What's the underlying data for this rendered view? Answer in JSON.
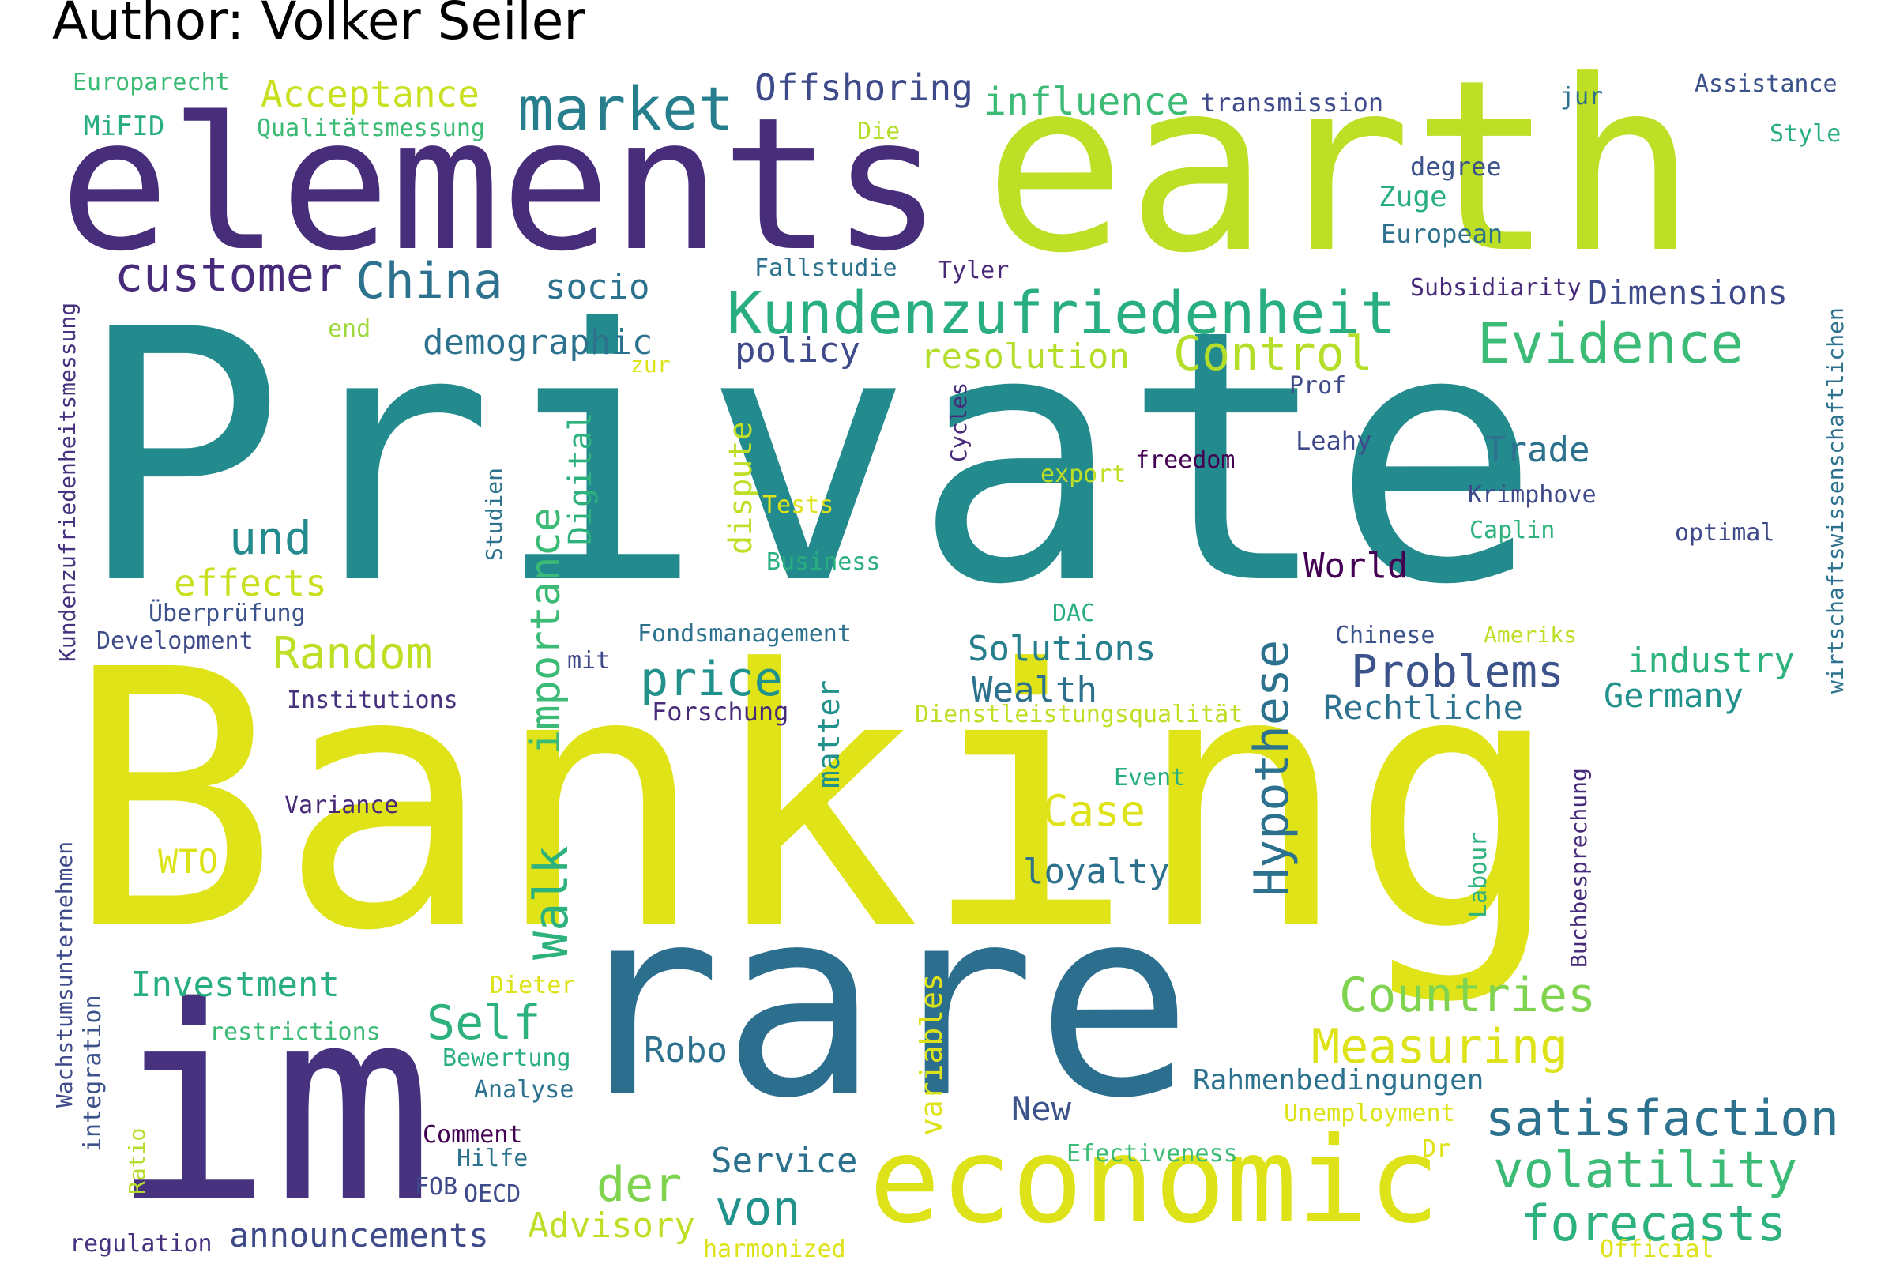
{
  "title": "Author: Volker Seiler",
  "palette": {
    "p1": "#482878",
    "p2": "#3b528b",
    "p3": "#2c728e",
    "p4": "#21918c",
    "p5": "#27ad81",
    "p6": "#5ec962",
    "p7": "#aadc32",
    "p8": "#dde318",
    "p9": "#440154"
  },
  "words": [
    {
      "text": "Private",
      "color": "#238a8d"
    },
    {
      "text": "Banking",
      "color": "#dfe318"
    },
    {
      "text": "earth",
      "color": "#bddf26"
    },
    {
      "text": "elements",
      "color": "#482d7a"
    },
    {
      "text": "im",
      "color": "#46327e"
    },
    {
      "text": "rare",
      "color": "#2c6e8e"
    },
    {
      "text": "economic",
      "color": "#dde318"
    },
    {
      "text": "Kundenzufriedenheit",
      "color": "#29af7f"
    },
    {
      "text": "market",
      "color": "#277f8e"
    },
    {
      "text": "customer",
      "color": "#472a7a"
    },
    {
      "text": "China",
      "color": "#2c728e"
    },
    {
      "text": "Evidence",
      "color": "#3bbb75"
    },
    {
      "text": "Control",
      "color": "#b5de2b"
    },
    {
      "text": "satisfaction",
      "color": "#2c728e"
    },
    {
      "text": "volatility",
      "color": "#3bbb75"
    },
    {
      "text": "forecasts",
      "color": "#2db27d"
    },
    {
      "text": "Countries",
      "color": "#7fd34e"
    },
    {
      "text": "Measuring",
      "color": "#dde318"
    },
    {
      "text": "Problems",
      "color": "#3b528b"
    },
    {
      "text": "Hypothese",
      "color": "#2c728e"
    },
    {
      "text": "Walk",
      "color": "#2db27d"
    },
    {
      "text": "importance",
      "color": "#3bbb75"
    },
    {
      "text": "price",
      "color": "#21918c"
    },
    {
      "text": "Self",
      "color": "#2db27d"
    },
    {
      "text": "der",
      "color": "#7fd34e"
    },
    {
      "text": "von",
      "color": "#21918c"
    },
    {
      "text": "Offshoring",
      "color": "#3e4a89"
    },
    {
      "text": "influence",
      "color": "#3bbb75"
    },
    {
      "text": "Acceptance",
      "color": "#c8e020"
    },
    {
      "text": "und",
      "color": "#238a8d"
    },
    {
      "text": "Random",
      "color": "#bddf26"
    },
    {
      "text": "effects",
      "color": "#c8e020"
    },
    {
      "text": "demographic",
      "color": "#2c728e"
    },
    {
      "text": "policy",
      "color": "#3e4a89"
    },
    {
      "text": "socio",
      "color": "#2c728e"
    },
    {
      "text": "resolution",
      "color": "#b5de2b"
    },
    {
      "text": "Dimensions",
      "color": "#3e4a89"
    },
    {
      "text": "Trade",
      "color": "#2c728e"
    },
    {
      "text": "World",
      "color": "#440154"
    },
    {
      "text": "Solutions",
      "color": "#277f8e"
    },
    {
      "text": "Wealth",
      "color": "#2c728e"
    },
    {
      "text": "Rechtliche",
      "color": "#2c728e"
    },
    {
      "text": "industry",
      "color": "#2db27d"
    },
    {
      "text": "Germany",
      "color": "#21918c"
    },
    {
      "text": "Case",
      "color": "#dde318"
    },
    {
      "text": "loyalty",
      "color": "#2c728e"
    },
    {
      "text": "WTO",
      "color": "#dde318"
    },
    {
      "text": "Investment",
      "color": "#29af7f"
    },
    {
      "text": "Robo",
      "color": "#2c728e"
    },
    {
      "text": "Rahmenbedingungen",
      "color": "#2c728e"
    },
    {
      "text": "New",
      "color": "#3b528b"
    },
    {
      "text": "Service",
      "color": "#2c728e"
    },
    {
      "text": "Advisory",
      "color": "#bddf26"
    },
    {
      "text": "announcements",
      "color": "#3e4a89"
    },
    {
      "text": "Digital",
      "color": "#2db27d"
    },
    {
      "text": "dispute",
      "color": "#bddf26"
    },
    {
      "text": "matter",
      "color": "#21918c"
    },
    {
      "text": "variables",
      "color": "#dde318"
    },
    {
      "text": "Europarecht",
      "color": "#3bbb75"
    },
    {
      "text": "MiFID",
      "color": "#29af7f"
    },
    {
      "text": "Qualitätsmessung",
      "color": "#3bbb75"
    },
    {
      "text": "Die",
      "color": "#b5de2b"
    },
    {
      "text": "transmission",
      "color": "#3e4a89"
    },
    {
      "text": "jur",
      "color": "#2c728e"
    },
    {
      "text": "Assistance",
      "color": "#3b528b"
    },
    {
      "text": "Style",
      "color": "#29af7f"
    },
    {
      "text": "degree",
      "color": "#3b528b"
    },
    {
      "text": "Zuge",
      "color": "#29af7f"
    },
    {
      "text": "European",
      "color": "#2c728e"
    },
    {
      "text": "Fallstudie",
      "color": "#2c728e"
    },
    {
      "text": "Tyler",
      "color": "#482878"
    },
    {
      "text": "Subsidiarity",
      "color": "#472a7a"
    },
    {
      "text": "wirtschaftswissenschaftlichen",
      "color": "#2c728e"
    },
    {
      "text": "Kundenzufriedenheitsmessung",
      "color": "#46327e"
    },
    {
      "text": "end",
      "color": "#9dd93b"
    },
    {
      "text": "zur",
      "color": "#dde318"
    },
    {
      "text": "Prof",
      "color": "#3e4a89"
    },
    {
      "text": "Cycles",
      "color": "#472a7a"
    },
    {
      "text": "Leahy",
      "color": "#3e4a89"
    },
    {
      "text": "freedom",
      "color": "#440154"
    },
    {
      "text": "export",
      "color": "#bddf26"
    },
    {
      "text": "Tests",
      "color": "#dde318"
    },
    {
      "text": "Studien",
      "color": "#2c728e"
    },
    {
      "text": "Krimphove",
      "color": "#3e4a89"
    },
    {
      "text": "Caplin",
      "color": "#2db27d"
    },
    {
      "text": "optimal",
      "color": "#3e4a89"
    },
    {
      "text": "Business",
      "color": "#29af7f"
    },
    {
      "text": "Überprüfung",
      "color": "#3b528b"
    },
    {
      "text": "Development",
      "color": "#3e4a89"
    },
    {
      "text": "DAC",
      "color": "#29af7f"
    },
    {
      "text": "Fondsmanagement",
      "color": "#2c728e"
    },
    {
      "text": "Chinese",
      "color": "#3b528b"
    },
    {
      "text": "Ameriks",
      "color": "#bddf26"
    },
    {
      "text": "mit",
      "color": "#3e4a89"
    },
    {
      "text": "Forschung",
      "color": "#472a7a"
    },
    {
      "text": "Dienstleistungsqualität",
      "color": "#bddf26"
    },
    {
      "text": "Institutions",
      "color": "#46327e"
    },
    {
      "text": "Event",
      "color": "#29af7f"
    },
    {
      "text": "Variance",
      "color": "#482878"
    },
    {
      "text": "Wachstumsunternehmen",
      "color": "#3e4a89"
    },
    {
      "text": "Labour",
      "color": "#2db27d"
    },
    {
      "text": "Buchbesprechung",
      "color": "#472a7a"
    },
    {
      "text": "restrictions",
      "color": "#3bbb75"
    },
    {
      "text": "Dieter",
      "color": "#dde318"
    },
    {
      "text": "Bewertung",
      "color": "#29af7f"
    },
    {
      "text": "Analyse",
      "color": "#2c728e"
    },
    {
      "text": "integration",
      "color": "#3b528b"
    },
    {
      "text": "Comment",
      "color": "#440154"
    },
    {
      "text": "Hilfe",
      "color": "#2c728e"
    },
    {
      "text": "Ratio",
      "color": "#b5de2b"
    },
    {
      "text": "FOB",
      "color": "#3e4a89"
    },
    {
      "text": "OECD",
      "color": "#3e4a89"
    },
    {
      "text": "Unemployment",
      "color": "#dde318"
    },
    {
      "text": "Efectiveness",
      "color": "#3bbb75"
    },
    {
      "text": "Dr",
      "color": "#dde318"
    },
    {
      "text": "regulation",
      "color": "#46327e"
    },
    {
      "text": "harmonized",
      "color": "#dde318"
    },
    {
      "text": "Official",
      "color": "#dde318"
    }
  ]
}
